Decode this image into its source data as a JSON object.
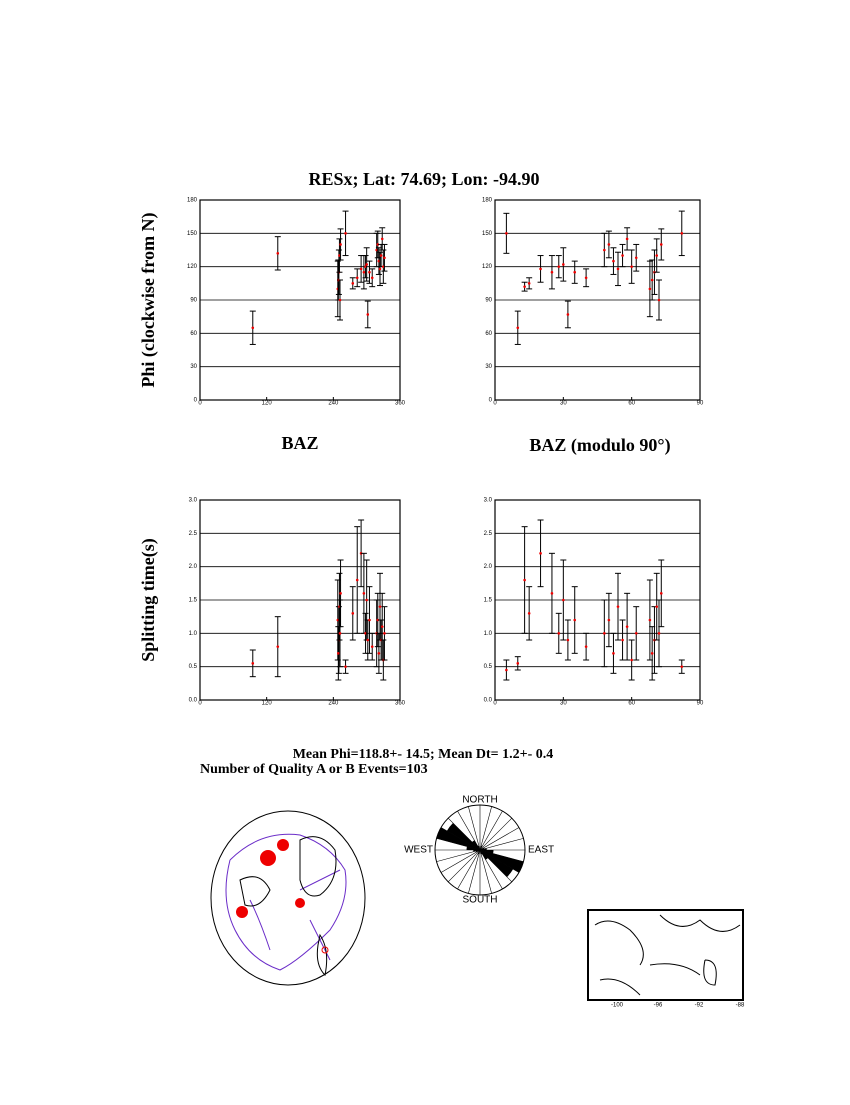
{
  "title": "RESx; Lat:  74.69;  Lon:  -94.90",
  "chart_data": [
    {
      "type": "errorscatter",
      "ylabel": "Phi (clockwise from N)",
      "xlabel": "BAZ",
      "xlim": [
        0,
        360
      ],
      "xticks": [
        0,
        120,
        240,
        360
      ],
      "ylim": [
        0,
        180
      ],
      "yticks": [
        0,
        30,
        60,
        90,
        120,
        150,
        180
      ],
      "grid": true,
      "x": [
        95,
        140,
        248,
        250,
        251,
        249,
        252,
        253,
        262,
        275,
        283,
        290,
        295,
        298,
        300,
        302,
        305,
        310,
        318,
        320,
        322,
        324,
        326,
        328,
        330,
        332
      ],
      "values": [
        65,
        132,
        100,
        115,
        130,
        108,
        90,
        140,
        150,
        105,
        110,
        118,
        115,
        120,
        122,
        77,
        115,
        110,
        135,
        140,
        125,
        118,
        130,
        145,
        120,
        128
      ],
      "errors": [
        15,
        15,
        25,
        20,
        15,
        18,
        18,
        14,
        20,
        5,
        8,
        12,
        15,
        10,
        15,
        12,
        10,
        8,
        15,
        12,
        12,
        15,
        10,
        10,
        15,
        12
      ]
    },
    {
      "type": "errorscatter",
      "xlabel": "BAZ (modulo 90°)",
      "xlim": [
        0,
        90
      ],
      "xticks": [
        0,
        30,
        60,
        90
      ],
      "ylim": [
        0,
        180
      ],
      "yticks": [
        0,
        30,
        60,
        90,
        120,
        150,
        180
      ],
      "grid": true,
      "x": [
        5,
        10,
        68,
        70,
        71,
        69,
        72,
        73,
        82,
        15,
        13,
        20,
        25,
        28,
        30,
        32,
        35,
        40,
        48,
        50,
        52,
        54,
        56,
        58,
        60,
        62
      ],
      "values": [
        150,
        65,
        100,
        115,
        130,
        108,
        90,
        140,
        150,
        105,
        102,
        118,
        115,
        120,
        122,
        77,
        115,
        110,
        135,
        140,
        125,
        118,
        130,
        145,
        120,
        128
      ],
      "errors": [
        18,
        15,
        25,
        20,
        15,
        18,
        18,
        14,
        20,
        5,
        4,
        12,
        15,
        10,
        15,
        12,
        10,
        8,
        15,
        12,
        12,
        15,
        10,
        10,
        15,
        12
      ]
    },
    {
      "type": "errorscatter",
      "ylabel": "Splitting time(s)",
      "xlim": [
        0,
        360
      ],
      "xticks": [
        0,
        120,
        240,
        360
      ],
      "ylim": [
        0,
        3
      ],
      "yticks": [
        {
          "value": 0,
          "label": "0.0"
        },
        0.5,
        {
          "value": 1,
          "label": "1.0"
        },
        1.5,
        {
          "value": 2,
          "label": "2.0"
        },
        2.5,
        {
          "value": 3,
          "label": "3.0"
        }
      ],
      "grid": true,
      "x": [
        95,
        140,
        248,
        250,
        251,
        249,
        252,
        253,
        262,
        275,
        283,
        290,
        295,
        298,
        300,
        302,
        305,
        310,
        318,
        320,
        322,
        324,
        326,
        328,
        330,
        332
      ],
      "values": [
        0.55,
        0.8,
        1.2,
        0.9,
        1.4,
        0.7,
        1.0,
        1.6,
        0.5,
        1.3,
        1.8,
        2.2,
        1.6,
        1.0,
        1.5,
        0.9,
        1.2,
        0.8,
        1.0,
        1.2,
        0.7,
        1.4,
        0.9,
        1.1,
        0.6,
        1.0
      ],
      "errors": [
        0.2,
        0.45,
        0.6,
        0.5,
        0.5,
        0.4,
        0.5,
        0.5,
        0.1,
        0.4,
        0.8,
        0.5,
        0.6,
        0.3,
        0.6,
        0.3,
        0.5,
        0.2,
        0.5,
        0.4,
        0.3,
        0.5,
        0.3,
        0.5,
        0.3,
        0.4
      ]
    },
    {
      "type": "errorscatter",
      "xlim": [
        0,
        90
      ],
      "xticks": [
        0,
        30,
        60,
        90
      ],
      "ylim": [
        0,
        3
      ],
      "yticks": [
        {
          "value": 0,
          "label": "0.0"
        },
        0.5,
        {
          "value": 1,
          "label": "1.0"
        },
        1.5,
        {
          "value": 2,
          "label": "2.0"
        },
        2.5,
        {
          "value": 3,
          "label": "3.0"
        }
      ],
      "grid": true,
      "x": [
        5,
        10,
        68,
        70,
        71,
        69,
        72,
        73,
        82,
        15,
        13,
        20,
        25,
        28,
        30,
        32,
        35,
        40,
        48,
        50,
        52,
        54,
        56,
        58,
        60,
        62
      ],
      "values": [
        0.45,
        0.55,
        1.2,
        0.9,
        1.4,
        0.7,
        1.0,
        1.6,
        0.5,
        1.3,
        1.8,
        2.2,
        1.6,
        1.0,
        1.5,
        0.9,
        1.2,
        0.8,
        1.0,
        1.2,
        0.7,
        1.4,
        0.9,
        1.1,
        0.6,
        1.0
      ],
      "errors": [
        0.15,
        0.1,
        0.6,
        0.5,
        0.5,
        0.4,
        0.5,
        0.5,
        0.1,
        0.4,
        0.8,
        0.5,
        0.6,
        0.3,
        0.6,
        0.3,
        0.5,
        0.2,
        0.5,
        0.4,
        0.3,
        0.5,
        0.3,
        0.5,
        0.3,
        0.4
      ]
    },
    {
      "type": "rose",
      "north": "NORTH",
      "south": "SOUTH",
      "west": "WEST",
      "east": "EAST",
      "bin_width": 15,
      "values": [
        0,
        0.1,
        0,
        0,
        0.1,
        0.15,
        0.3,
        1.0,
        0.85,
        0.25,
        0.1,
        0
      ]
    }
  ],
  "stats": {
    "mean": "Mean Phi=118.8+- 14.5; Mean Dt=  1.2+-  0.4",
    "count": "Number of Quality A or B Events=103"
  },
  "inset_map": {
    "ticks": [
      "-100",
      "-96",
      "-92",
      "-88"
    ]
  }
}
